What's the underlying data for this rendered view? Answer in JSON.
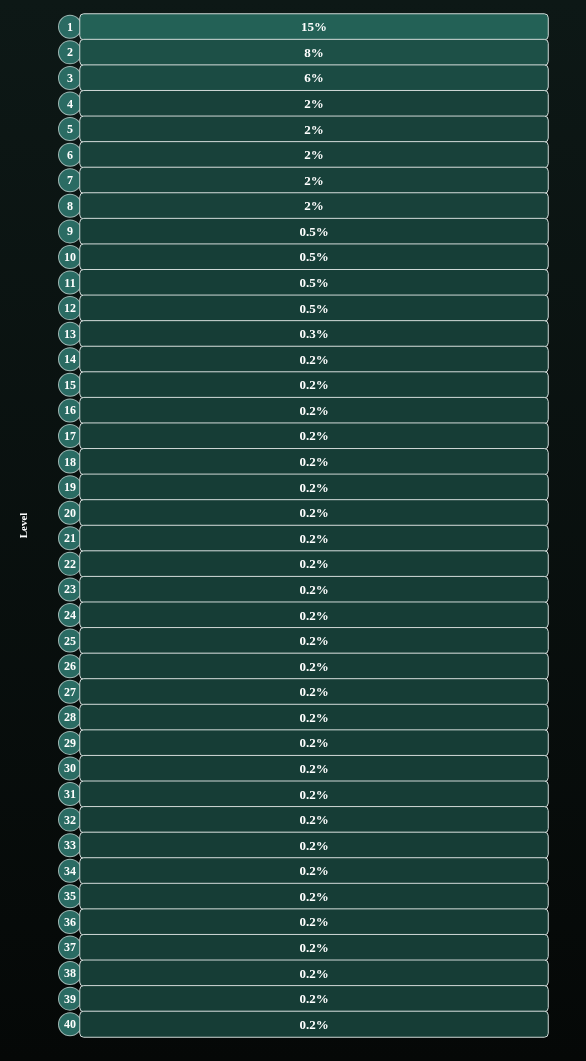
{
  "chart_data": {
    "type": "heatmap",
    "ylabel": "Level",
    "categories": [
      null
    ],
    "y_categories": [
      "1",
      "2",
      "3",
      "4",
      "5",
      "6",
      "7",
      "8",
      "9",
      "10",
      "11",
      "12",
      "13",
      "14",
      "15",
      "16",
      "17",
      "18",
      "19",
      "20",
      "21",
      "22",
      "23",
      "24",
      "25",
      "26",
      "27",
      "28",
      "29",
      "30",
      "31",
      "32",
      "33",
      "34",
      "35",
      "36",
      "37",
      "38",
      "39",
      "40"
    ],
    "cells": [
      [
        15
      ],
      [
        8
      ],
      [
        6
      ],
      [
        2
      ],
      [
        2
      ],
      [
        2
      ],
      [
        2
      ],
      [
        2
      ],
      [
        0.5
      ],
      [
        0.5
      ],
      [
        0.5
      ],
      [
        0.5
      ],
      [
        0.3
      ],
      [
        0.2
      ],
      [
        0.2
      ],
      [
        0.2
      ],
      [
        0.2
      ],
      [
        0.2
      ],
      [
        0.2
      ],
      [
        0.2
      ],
      [
        0.2
      ],
      [
        0.2
      ],
      [
        0.2
      ],
      [
        0.2
      ],
      [
        0.2
      ],
      [
        0.2
      ],
      [
        0.2
      ],
      [
        0.2
      ],
      [
        0.2
      ],
      [
        0.2
      ],
      [
        0.2
      ],
      [
        0.2
      ],
      [
        0.2
      ],
      [
        0.2
      ],
      [
        0.2
      ],
      [
        0.2
      ],
      [
        0.2
      ],
      [
        0.2
      ],
      [
        0.2
      ],
      [
        0.2
      ]
    ],
    "cell_labels": [
      [
        "15%"
      ],
      [
        "8%"
      ],
      [
        "6%"
      ],
      [
        "2%"
      ],
      [
        "2%"
      ],
      [
        "2%"
      ],
      [
        "2%"
      ],
      [
        "2%"
      ],
      [
        "0.5%"
      ],
      [
        "0.5%"
      ],
      [
        "0.5%"
      ],
      [
        "0.5%"
      ],
      [
        "0.3%"
      ],
      [
        "0.2%"
      ],
      [
        "0.2%"
      ],
      [
        "0.2%"
      ],
      [
        "0.2%"
      ],
      [
        "0.2%"
      ],
      [
        "0.2%"
      ],
      [
        "0.2%"
      ],
      [
        "0.2%"
      ],
      [
        "0.2%"
      ],
      [
        "0.2%"
      ],
      [
        "0.2%"
      ],
      [
        "0.2%"
      ],
      [
        "0.2%"
      ],
      [
        "0.2%"
      ],
      [
        "0.2%"
      ],
      [
        "0.2%"
      ],
      [
        "0.2%"
      ],
      [
        "0.2%"
      ],
      [
        "0.2%"
      ],
      [
        "0.2%"
      ],
      [
        "0.2%"
      ],
      [
        "0.2%"
      ],
      [
        "0.2%"
      ],
      [
        "0.2%"
      ],
      [
        "0.2%"
      ],
      [
        "0.2%"
      ],
      [
        "0.2%"
      ]
    ]
  }
}
